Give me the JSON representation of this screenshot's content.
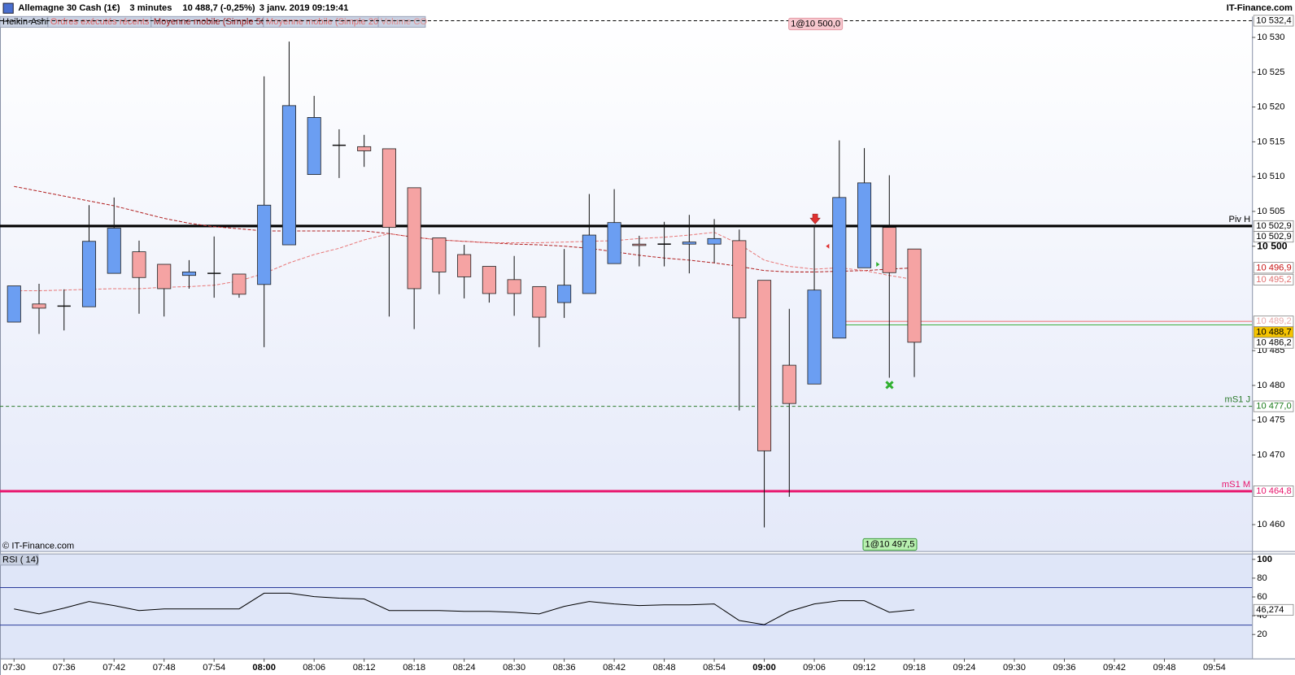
{
  "header": {
    "instrument": "Allemagne 30 Cash (1€)",
    "period": "3 minutes",
    "quote": "10 488,7 (-0,25%)",
    "datetime": "3 janv. 2019 09:19:41",
    "brand": "IT-Finance.com"
  },
  "tabs": [
    "Heikin-Ashi",
    "Ordres exécutés récents",
    "Volume CO"
  ],
  "orders": [
    "1@10 500,0",
    "1@10 497,5"
  ],
  "copyright": "© IT-Finance.com",
  "chart_data": [
    {
      "type": "candlestick",
      "categories": [
        "07:30",
        null,
        "07:36",
        null,
        "07:42",
        null,
        "07:48",
        null,
        "07:54",
        null,
        "08:00",
        null,
        "08:06",
        null,
        "08:12",
        null,
        "08:18",
        null,
        "08:24",
        null,
        "08:30",
        null,
        "08:36",
        null,
        "08:42",
        null,
        "08:48",
        null,
        "08:54",
        null,
        "09:00",
        null,
        "09:06",
        null,
        "09:12",
        null,
        "09:18",
        null,
        "09:24",
        null,
        "09:30",
        null,
        "09:36",
        null,
        "09:42",
        null,
        "09:48",
        null,
        "09:54"
      ],
      "open": [
        10489.1,
        10491.7,
        10491.4,
        10491.3,
        10496.1,
        10499.2,
        10497.4,
        10495.8,
        10496.1,
        10496.0,
        10494.5,
        10500.2,
        10510.3,
        10514.5,
        10514.3,
        10514.0,
        10508.4,
        10501.2,
        10498.8,
        10497.1,
        10495.2,
        10494.2,
        10491.9,
        10493.2,
        10497.5,
        10500.3,
        10500.3,
        10500.3,
        10500.3,
        10500.8,
        10495.1,
        10482.9,
        10480.2,
        10486.8,
        10496.9,
        10502.7,
        10499.6,
        null,
        null,
        null,
        null,
        null,
        null,
        null,
        null,
        null,
        null,
        null,
        null
      ],
      "high": [
        10494.3,
        10494.6,
        10493.8,
        10505.9,
        10507.0,
        10500.8,
        10497.4,
        10498.0,
        10501.4,
        10496.0,
        10524.4,
        10529.4,
        10521.6,
        10516.8,
        10516.0,
        10514.0,
        10508.4,
        10501.2,
        10500.2,
        10497.1,
        10498.6,
        10494.2,
        10499.6,
        10507.5,
        10508.2,
        10501.5,
        10503.5,
        10504.5,
        10503.9,
        10502.4,
        10495.1,
        10491.0,
        10503.0,
        10515.2,
        10514.1,
        10510.2,
        10499.6,
        null,
        null,
        null,
        null,
        null,
        null,
        null,
        null,
        null,
        null,
        null,
        null
      ],
      "low": [
        10489.1,
        10487.4,
        10487.9,
        10491.3,
        10496.1,
        10490.3,
        10489.9,
        10493.9,
        10492.6,
        10492.6,
        10485.5,
        10500.2,
        10510.3,
        10509.8,
        10511.4,
        10489.9,
        10488.1,
        10493.1,
        10492.5,
        10491.9,
        10490.0,
        10485.5,
        10489.7,
        10493.2,
        10497.5,
        10497.1,
        10497.1,
        10496.1,
        10497.6,
        10476.4,
        10459.6,
        10464.0,
        10480.2,
        10486.8,
        10496.9,
        10481.1,
        10481.2,
        null,
        null,
        null,
        null,
        null,
        null,
        null,
        null,
        null,
        null,
        null,
        null
      ],
      "close": [
        10494.3,
        10491.1,
        10491.4,
        10500.7,
        10502.6,
        10495.5,
        10493.9,
        10496.3,
        10496.1,
        10493.1,
        10505.9,
        10520.2,
        10518.5,
        10514.5,
        10513.7,
        10502.7,
        10493.9,
        10496.3,
        10495.6,
        10493.2,
        10493.2,
        10489.8,
        10494.4,
        10501.6,
        10503.4,
        10500.1,
        10500.3,
        10500.6,
        10501.1,
        10489.7,
        10470.6,
        10477.4,
        10493.7,
        10507.0,
        10509.1,
        10496.2,
        10486.2,
        null,
        null,
        null,
        null,
        null,
        null,
        null,
        null,
        null,
        null,
        null,
        null
      ],
      "up_color": "#6b9ef2",
      "down_color": "#f5a3a3",
      "series": [
        {
          "name": "Moyenne mobile (Simple 50)",
          "color": "#b22222",
          "values": [
            10508.6,
            10507.9,
            10507.2,
            10506.5,
            10505.8,
            10504.9,
            10504.0,
            10503.3,
            10502.8,
            10502.5,
            10502.2,
            10502.2,
            10502.2,
            10502.2,
            10502.2,
            10501.8,
            10501.3,
            10500.9,
            10500.7,
            10500.5,
            10500.3,
            10500.2,
            10500.0,
            10499.7,
            10499.2,
            10498.7,
            10498.3,
            10498.0,
            10497.6,
            10497.1,
            10496.5,
            10496.3,
            10496.3,
            10496.4,
            10496.5,
            10496.7,
            10496.9,
            null,
            null,
            null,
            null,
            null,
            null,
            null,
            null,
            null,
            null,
            null,
            null
          ]
        },
        {
          "name": "Moyenne mobile (Simple 20)",
          "color": "#e87878",
          "values": [
            10493.6,
            10493.6,
            10493.7,
            10493.8,
            10493.9,
            10493.9,
            10494.1,
            10494.2,
            10494.4,
            10495.0,
            10496.1,
            10497.6,
            10498.8,
            10499.7,
            10500.9,
            10501.8,
            10501.3,
            10500.9,
            10500.7,
            10500.5,
            10500.5,
            10500.5,
            10500.6,
            10500.7,
            10500.8,
            10501.1,
            10501.3,
            10501.6,
            10502.0,
            10500.3,
            10498.0,
            10497.1,
            10496.7,
            10496.9,
            10496.5,
            10495.8,
            10495.2,
            null,
            null,
            null,
            null,
            null,
            null,
            null,
            null,
            null,
            null,
            null,
            null
          ]
        }
      ],
      "ylim": [
        10456.2,
        10533.0
      ],
      "yticks": [
        {
          "value": 10530,
          "label": "10 530"
        },
        {
          "value": 10525,
          "label": "10 525"
        },
        {
          "value": 10520,
          "label": "10 520"
        },
        {
          "value": 10515,
          "label": "10 515"
        },
        {
          "value": 10510,
          "label": "10 510"
        },
        {
          "value": 10505,
          "label": "10 505"
        },
        {
          "value": 10500,
          "label": "10 500"
        },
        {
          "value": 10485,
          "label": "10 485"
        },
        {
          "value": 10480,
          "label": "10 480"
        },
        {
          "value": 10475,
          "label": "10 475"
        },
        {
          "value": 10470,
          "label": "10 470"
        },
        {
          "value": 10460,
          "label": "10 460"
        }
      ],
      "levels": [
        {
          "value": 10532.4,
          "style": "dashed",
          "color": "#000000"
        },
        {
          "name": "Piv H",
          "value": 10502.9,
          "style": "thick",
          "color": "#000000"
        },
        {
          "value": 10489.2,
          "style": "thin",
          "color": "#f08080"
        },
        {
          "value": 10488.7,
          "style": "thin",
          "color": "#40b040"
        },
        {
          "name": "mS1 J",
          "value": 10477.0,
          "style": "dashed",
          "color": "#2a7a2a"
        },
        {
          "name": "mS1 M",
          "value": 10464.8,
          "style": "thick",
          "color": "#e8146c"
        }
      ],
      "price_tags": [
        {
          "value": 10532.4,
          "label": "10 532,4",
          "color": "#000000",
          "bg": "#ffffff"
        },
        {
          "value": 10502.9,
          "label": "10 502,9",
          "color": "#000000",
          "bg": "#ffffff"
        },
        {
          "value": 10502.9,
          "label": "10 502,9",
          "color": "#000000",
          "bg": "#ffffff"
        },
        {
          "value": 10496.9,
          "label": "10 496,9",
          "color": "#c81414",
          "bg": "#ffffff"
        },
        {
          "value": 10495.2,
          "label": "10 495,2",
          "color": "#e07070",
          "bg": "#ffffff"
        },
        {
          "value": 10489.2,
          "label": "10 489,2",
          "color": "#e8a8a8",
          "bg": "#ffffff"
        },
        {
          "value": 10488.7,
          "label": "10 488,7",
          "color": "#000000",
          "bg": "#f5c400"
        },
        {
          "value": 10486.2,
          "label": "10 486,2",
          "color": "#000000",
          "bg": "#ffffff"
        },
        {
          "value": 10477.0,
          "label": "10 477,0",
          "color": "#1a7a1a",
          "bg": "#ffffff"
        },
        {
          "value": 10464.8,
          "label": "10 464,8",
          "color": "#e8146c",
          "bg": "#ffffff"
        }
      ]
    },
    {
      "type": "line",
      "title": "RSI ( 14)",
      "values": [
        47.3,
        42.0,
        48.1,
        55.2,
        50.8,
        45.5,
        47.3,
        47.3,
        47.3,
        47.3,
        64.0,
        64.0,
        60.4,
        58.7,
        57.8,
        45.5,
        45.5,
        45.5,
        44.6,
        44.6,
        43.7,
        42.0,
        49.9,
        55.2,
        52.5,
        50.8,
        51.6,
        51.6,
        52.5,
        34.9,
        30.5,
        44.6,
        52.5,
        56.0,
        56.0,
        43.7,
        46.274,
        null,
        null,
        null,
        null,
        null,
        null,
        null,
        null,
        null,
        null,
        null,
        null
      ],
      "color": "#000000",
      "ylim": [
        -5.5,
        105.3
      ],
      "yticks": [
        100,
        80,
        60,
        40,
        20
      ],
      "hlines": [
        70,
        30
      ],
      "hline_color": "#2c3c9c",
      "price_tags": [
        {
          "value": 46.274,
          "label": "46,274",
          "color": "#000000",
          "bg": "#ffffff"
        }
      ]
    }
  ]
}
